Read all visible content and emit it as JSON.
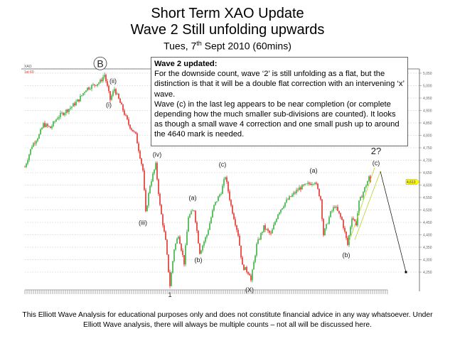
{
  "header": {
    "title": "Short Term XAO Update",
    "subtitle": "Wave 2 Still unfolding upwards",
    "date_prefix": "Tues, 7",
    "date_sup": "th",
    "date_suffix": " Sept 2010 (60mins)"
  },
  "note": {
    "heading": "Wave 2 updated:",
    "body": "For the downside count, wave ‘2’ is still unfolding as a flat, but the distinction is that it will be a double flat correction with an intervening ‘x’ wave.",
    "body2": "Wave (c) in the last leg appears to be near completion  (or complete depending how the much smaller sub-divisions are counted). It looks as though a small wave 4 correction and one small push up to around the 4640 mark is needed."
  },
  "footer": {
    "line1": "This Elliott Wave Analysis for educational purposes only and does not constitute financial advice in any way whatsoever. Under",
    "line2": "Elliott Wave analysis, there will always be multiple counts – not all will be discussed here."
  },
  "chart_data": {
    "type": "candlestick",
    "symbol": "XAO",
    "interval_label": "1st 60",
    "ylim": [
      4200,
      5075
    ],
    "yticks": [
      "4,250",
      "4,300",
      "4,350",
      "4,400",
      "4,450",
      "4,500",
      "4,550",
      "4,600",
      "4,650",
      "4,700",
      "4,750",
      "4,800",
      "4,850",
      "4,900",
      "4,950",
      "5,000",
      "5,050"
    ],
    "grid": true,
    "last_price": "4,613",
    "colors": {
      "up": "#3cb043",
      "down": "#e0302a",
      "channel": "#b5d334",
      "last_price_tag": "#ffff00",
      "projection": "#000000"
    },
    "price_path": [
      {
        "bar": 0,
        "price": 4673
      },
      {
        "bar": 5,
        "price": 4759
      },
      {
        "bar": 10,
        "price": 4801
      },
      {
        "bar": 13,
        "price": 4844
      },
      {
        "bar": 18,
        "price": 4830
      },
      {
        "bar": 23,
        "price": 4873
      },
      {
        "bar": 33,
        "price": 4916
      },
      {
        "bar": 38,
        "price": 4944
      },
      {
        "bar": 43,
        "price": 4987
      },
      {
        "bar": 48,
        "price": 5001
      },
      {
        "bar": 53,
        "price": 5016
      },
      {
        "bar": 56,
        "price": 5044
      },
      {
        "bar": 60,
        "price": 4944
      },
      {
        "bar": 63,
        "price": 4987
      },
      {
        "bar": 68,
        "price": 4916
      },
      {
        "bar": 73,
        "price": 4844
      },
      {
        "bar": 78,
        "price": 4801
      },
      {
        "bar": 80,
        "price": 4744
      },
      {
        "bar": 83,
        "price": 4659
      },
      {
        "bar": 85,
        "price": 4487
      },
      {
        "bar": 88,
        "price": 4601
      },
      {
        "bar": 92,
        "price": 4681
      },
      {
        "bar": 95,
        "price": 4516
      },
      {
        "bar": 99,
        "price": 4373
      },
      {
        "bar": 102,
        "price": 4196
      },
      {
        "bar": 105,
        "price": 4344
      },
      {
        "bar": 108,
        "price": 4401
      },
      {
        "bar": 112,
        "price": 4287
      },
      {
        "bar": 115,
        "price": 4473
      },
      {
        "bar": 119,
        "price": 4501
      },
      {
        "bar": 123,
        "price": 4330
      },
      {
        "bar": 128,
        "price": 4401
      },
      {
        "bar": 133,
        "price": 4516
      },
      {
        "bar": 138,
        "price": 4573
      },
      {
        "bar": 141,
        "price": 4636
      },
      {
        "bar": 145,
        "price": 4516
      },
      {
        "bar": 150,
        "price": 4401
      },
      {
        "bar": 153,
        "price": 4273
      },
      {
        "bar": 158,
        "price": 4244
      },
      {
        "bar": 159,
        "price": 4216
      },
      {
        "bar": 163,
        "price": 4359
      },
      {
        "bar": 168,
        "price": 4430
      },
      {
        "bar": 173,
        "price": 4401
      },
      {
        "bar": 178,
        "price": 4487
      },
      {
        "bar": 183,
        "price": 4530
      },
      {
        "bar": 188,
        "price": 4559
      },
      {
        "bar": 193,
        "price": 4587
      },
      {
        "bar": 204,
        "price": 4616
      },
      {
        "bar": 208,
        "price": 4544
      },
      {
        "bar": 210,
        "price": 4401
      },
      {
        "bar": 215,
        "price": 4487
      },
      {
        "bar": 218,
        "price": 4516
      },
      {
        "bar": 223,
        "price": 4459
      },
      {
        "bar": 227,
        "price": 4359
      },
      {
        "bar": 230,
        "price": 4473
      },
      {
        "bar": 233,
        "price": 4444
      },
      {
        "bar": 235,
        "price": 4530
      },
      {
        "bar": 238,
        "price": 4573
      },
      {
        "bar": 242,
        "price": 4630
      },
      {
        "bar": 243,
        "price": 4613
      }
    ],
    "wave_labels": [
      {
        "text": "B",
        "bar": 53,
        "price": 5075,
        "circled": true
      },
      {
        "text": "(ii)",
        "bar": 62,
        "price": 5010
      },
      {
        "text": "(i)",
        "bar": 59,
        "price": 4915
      },
      {
        "text": "(iv)",
        "bar": 93,
        "price": 4715
      },
      {
        "text": "(iii)",
        "bar": 83,
        "price": 4440
      },
      {
        "text": "1",
        "bar": 102,
        "price": 4150
      },
      {
        "text": "(a)",
        "bar": 118,
        "price": 4540
      },
      {
        "text": "(b)",
        "bar": 122,
        "price": 4290
      },
      {
        "text": "(c)",
        "bar": 139,
        "price": 4675
      },
      {
        "text": "(X)",
        "bar": 158,
        "price": 4170
      },
      {
        "text": "(a)",
        "bar": 203,
        "price": 4650
      },
      {
        "text": "(b)",
        "bar": 226,
        "price": 4310
      },
      {
        "text": "(c)",
        "bar": 247,
        "price": 4680
      },
      {
        "text": "2?",
        "bar": 247,
        "price": 4725,
        "large": true
      }
    ],
    "channel": [
      {
        "from": {
          "bar": 228,
          "price": 4373
        },
        "to": {
          "bar": 246,
          "price": 4670
        }
      },
      {
        "from": {
          "bar": 232,
          "price": 4380
        },
        "to": {
          "bar": 250,
          "price": 4655
        }
      }
    ],
    "projection": {
      "from": {
        "bar": 250,
        "price": 4655
      },
      "to": {
        "bar": 268,
        "price": 4250
      }
    }
  }
}
